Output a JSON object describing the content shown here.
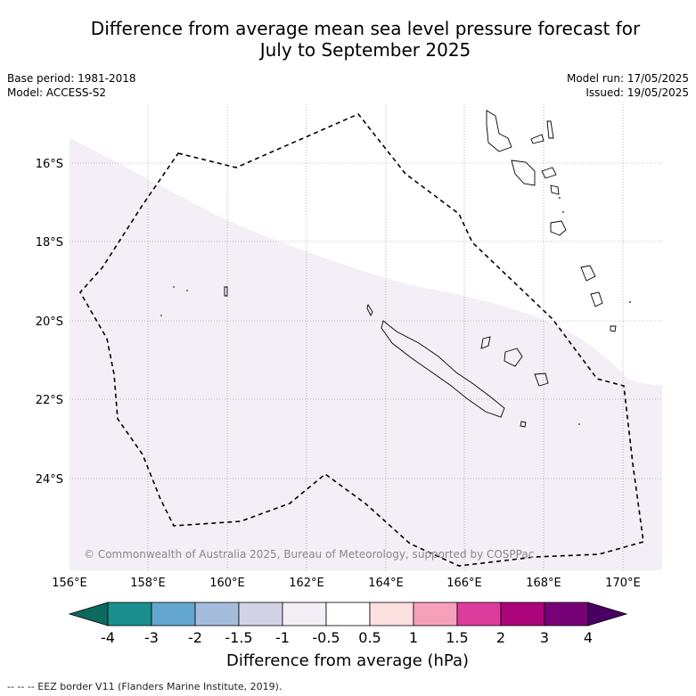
{
  "title_line1": "Difference from average mean sea level pressure forecast for",
  "title_line2": "July to September 2025",
  "base_period": "Base period: 1981-2018",
  "model": "Model: ACCESS-S2",
  "model_run": "Model run: 17/05/2025",
  "issued": "Issued: 19/05/2025",
  "copyright": "© Commonwealth of Australia 2025, Bureau of Meteorology, supported by COSPPac",
  "lat_labels": [
    "16°S",
    "18°S",
    "20°S",
    "22°S",
    "24°S"
  ],
  "lon_labels": [
    "156°E",
    "158°E",
    "160°E",
    "162°E",
    "164°E",
    "166°E",
    "168°E",
    "170°E"
  ],
  "colorbar": {
    "ticks": [
      "-4",
      "-3",
      "-2",
      "-1.5",
      "-1",
      "-0.5",
      "0.5",
      "1",
      "1.5",
      "2",
      "3",
      "4"
    ],
    "colors": [
      "#1a8f8f",
      "#63a7d0",
      "#a6bcdc",
      "#d2d3e6",
      "#f4eef7",
      "#ffffff",
      "#fde0e0",
      "#f7a0bb",
      "#de3c9c",
      "#ac047a",
      "#770177"
    ],
    "low_extend_color": "#0b6a5d",
    "high_extend_color": "#4a0062",
    "label": "Difference from average (hPa)"
  },
  "legend": "--  --  -- EEZ border V11 (Flanders Marine Institute, 2019)."
}
